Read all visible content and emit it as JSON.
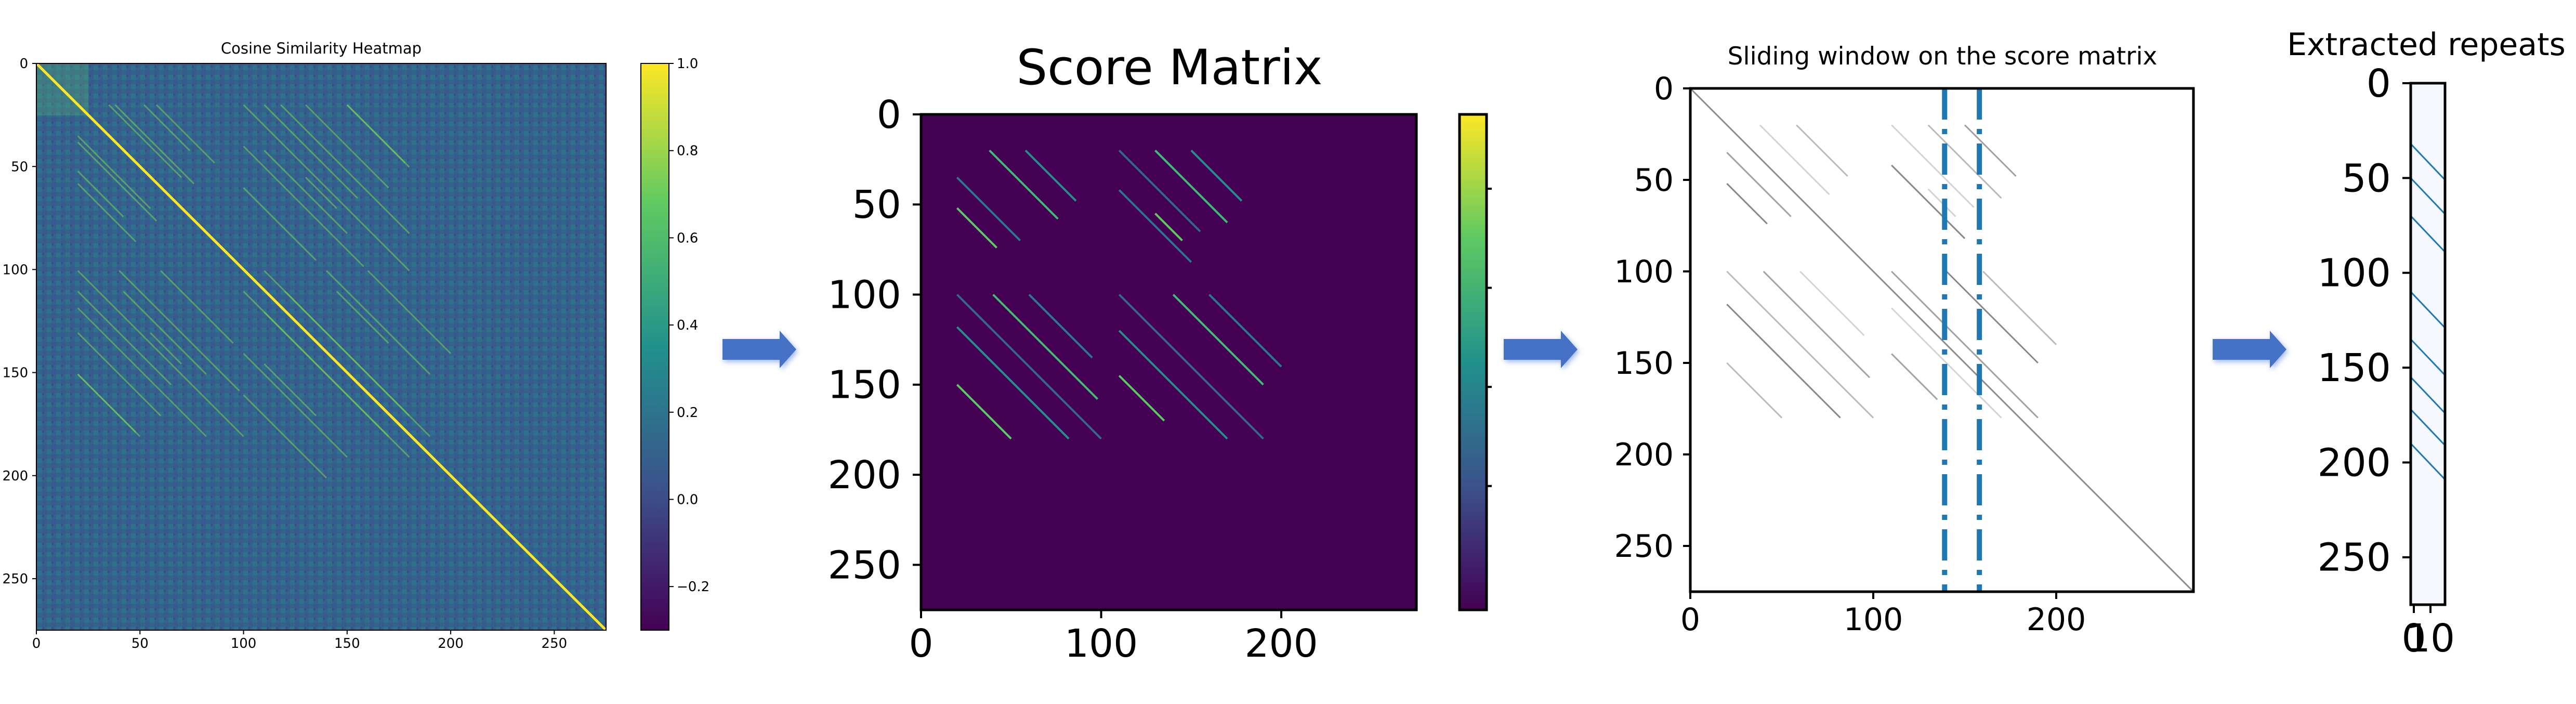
{
  "chart_data": [
    {
      "type": "heatmap",
      "title": "Cosine Similarity Heatmap",
      "xlabel": "",
      "ylabel": "",
      "xlim": [
        0,
        275
      ],
      "ylim": [
        275,
        0
      ],
      "xticks": [
        0,
        50,
        100,
        150,
        200,
        250
      ],
      "yticks": [
        0,
        50,
        100,
        150,
        200,
        250
      ],
      "colorbar": {
        "colormap": "viridis",
        "range": [
          -0.3,
          1.0
        ],
        "ticks": [
          "1.0",
          "0.8",
          "0.6",
          "0.4",
          "0.2",
          "0.0",
          "−0.2"
        ]
      },
      "diagonal_value": 1.0,
      "background_value": 0.15
    },
    {
      "type": "heatmap",
      "title": "Score Matrix",
      "xlabel": "",
      "ylabel": "",
      "xlim": [
        0,
        275
      ],
      "ylim": [
        275,
        0
      ],
      "xticks": [
        0,
        100,
        200
      ],
      "yticks": [
        0,
        50,
        100,
        150,
        200,
        250
      ],
      "colorbar": {
        "colormap": "viridis",
        "ticks": []
      },
      "diagonal_segments": [
        {
          "x0": 38,
          "y0": 20,
          "len": 38
        },
        {
          "x0": 58,
          "y0": 20,
          "len": 28
        },
        {
          "x0": 20,
          "y0": 35,
          "len": 35
        },
        {
          "x0": 20,
          "y0": 52,
          "len": 22
        },
        {
          "x0": 110,
          "y0": 20,
          "len": 45
        },
        {
          "x0": 130,
          "y0": 20,
          "len": 40
        },
        {
          "x0": 150,
          "y0": 20,
          "len": 28
        },
        {
          "x0": 110,
          "y0": 42,
          "len": 40
        },
        {
          "x0": 130,
          "y0": 55,
          "len": 15
        },
        {
          "x0": 20,
          "y0": 100,
          "len": 80
        },
        {
          "x0": 40,
          "y0": 100,
          "len": 58
        },
        {
          "x0": 20,
          "y0": 118,
          "len": 62
        },
        {
          "x0": 60,
          "y0": 100,
          "len": 35
        },
        {
          "x0": 20,
          "y0": 150,
          "len": 30
        },
        {
          "x0": 110,
          "y0": 100,
          "len": 80
        },
        {
          "x0": 140,
          "y0": 100,
          "len": 50
        },
        {
          "x0": 110,
          "y0": 120,
          "len": 60
        },
        {
          "x0": 160,
          "y0": 100,
          "len": 40
        },
        {
          "x0": 110,
          "y0": 145,
          "len": 25
        }
      ]
    },
    {
      "type": "heatmap",
      "title": "Sliding window on the score matrix",
      "xlabel": "",
      "ylabel": "",
      "xlim": [
        0,
        275
      ],
      "ylim": [
        275,
        0
      ],
      "xticks": [
        0,
        100,
        200
      ],
      "yticks": [
        0,
        50,
        100,
        150,
        200,
        250
      ],
      "window_x": [
        139,
        158
      ],
      "diagonal_segments": [
        {
          "x0": 38,
          "y0": 20,
          "len": 38
        },
        {
          "x0": 58,
          "y0": 20,
          "len": 28
        },
        {
          "x0": 20,
          "y0": 35,
          "len": 35
        },
        {
          "x0": 20,
          "y0": 52,
          "len": 22
        },
        {
          "x0": 110,
          "y0": 20,
          "len": 45
        },
        {
          "x0": 130,
          "y0": 20,
          "len": 40
        },
        {
          "x0": 150,
          "y0": 20,
          "len": 28
        },
        {
          "x0": 110,
          "y0": 42,
          "len": 40
        },
        {
          "x0": 130,
          "y0": 55,
          "len": 15
        },
        {
          "x0": 20,
          "y0": 100,
          "len": 80
        },
        {
          "x0": 40,
          "y0": 100,
          "len": 58
        },
        {
          "x0": 20,
          "y0": 118,
          "len": 62
        },
        {
          "x0": 60,
          "y0": 100,
          "len": 35
        },
        {
          "x0": 20,
          "y0": 150,
          "len": 30
        },
        {
          "x0": 110,
          "y0": 100,
          "len": 80
        },
        {
          "x0": 140,
          "y0": 100,
          "len": 50
        },
        {
          "x0": 110,
          "y0": 120,
          "len": 60
        },
        {
          "x0": 160,
          "y0": 100,
          "len": 40
        },
        {
          "x0": 110,
          "y0": 145,
          "len": 25
        }
      ]
    },
    {
      "type": "heatmap",
      "title": "Extracted repeats",
      "xlabel": "",
      "ylabel": "",
      "xlim": [
        0,
        19
      ],
      "ylim": [
        275,
        0
      ],
      "xticks": [
        "0",
        "10"
      ],
      "yticks": [
        0,
        50,
        100,
        150,
        200,
        250
      ],
      "segments": [
        {
          "y0": 32,
          "len": 19
        },
        {
          "y0": 50,
          "len": 19
        },
        {
          "y0": 70,
          "len": 19
        },
        {
          "y0": 110,
          "len": 19
        },
        {
          "y0": 135,
          "len": 19
        },
        {
          "y0": 155,
          "len": 19
        },
        {
          "y0": 172,
          "len": 19
        },
        {
          "y0": 190,
          "len": 19
        }
      ]
    }
  ],
  "colors": {
    "arrow": "#4472c4",
    "window_line": "#1f77b4",
    "segment_line": "#1f77b4",
    "score_background": "#440154",
    "extract_background": "#f5f9ff"
  }
}
